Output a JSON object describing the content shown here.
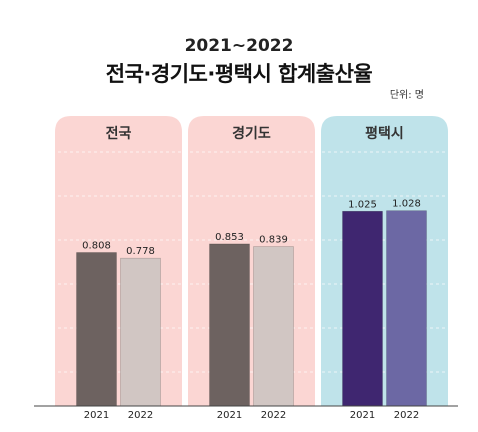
{
  "subtitle": "2021~2022",
  "title": "전국·경기도·평택시 합계출산율",
  "unit_label": "단위: 명",
  "colors": {
    "panel_pink": "#fbd6d3",
    "panel_blue": "#bfe3ea",
    "bar_2021_gray": "#6d6260",
    "bar_2022_gray": "#d1c6c3",
    "bar_2021_purple": "#3f2670",
    "bar_2022_purple": "#6c68a4"
  },
  "chart_data": {
    "type": "bar",
    "title": "전국·경기도·평택시 합계출산율",
    "subtitle": "2021~2022",
    "unit": "단위: 명",
    "groups": [
      "전국",
      "경기도",
      "평택시"
    ],
    "categories": [
      "2021",
      "2022"
    ],
    "series": [
      {
        "group": "전국",
        "values": [
          0.808,
          0.778
        ],
        "labels": [
          "0.808",
          "0.778"
        ]
      },
      {
        "group": "경기도",
        "values": [
          0.853,
          0.839
        ],
        "labels": [
          "0.853",
          "0.839"
        ]
      },
      {
        "group": "평택시",
        "values": [
          1.025,
          1.028
        ],
        "labels": [
          "1.025",
          "1.028"
        ]
      }
    ],
    "ylim": [
      0,
      1.3
    ],
    "grid": true,
    "legend": "none"
  }
}
